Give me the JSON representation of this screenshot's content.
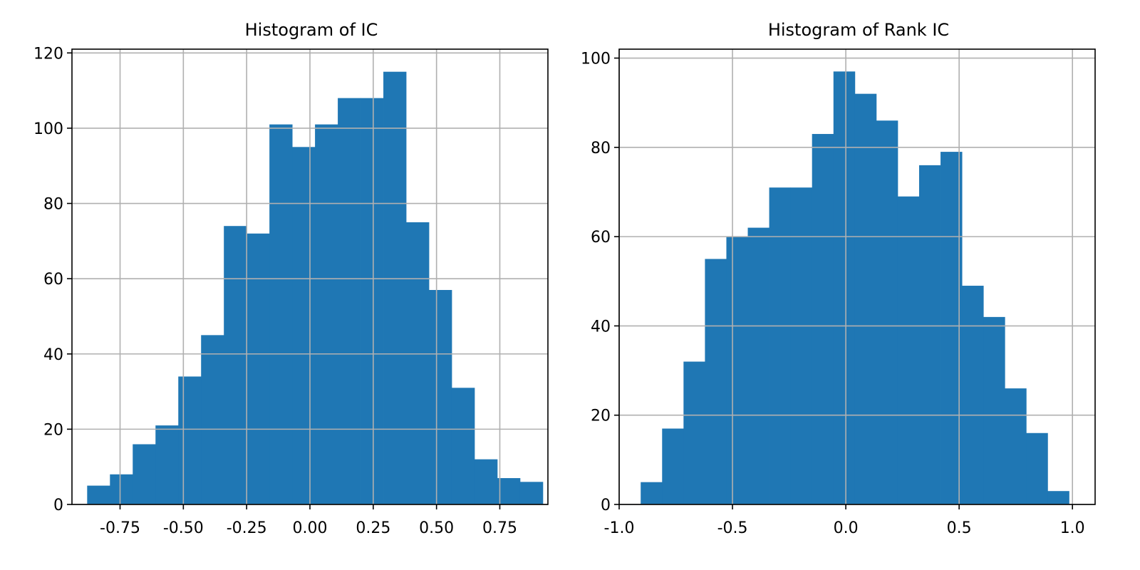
{
  "chart_data": [
    {
      "type": "bar",
      "title": "Histogram of IC",
      "xlabel": "",
      "ylabel": "",
      "color": "#1f77b4",
      "grid": true,
      "xlim": [
        -0.94,
        0.94
      ],
      "ylim": [
        0,
        121
      ],
      "xticks": [
        -0.75,
        -0.5,
        -0.25,
        0.0,
        0.25,
        0.5,
        0.75
      ],
      "xtick_labels": [
        "-0.75",
        "-0.50",
        "-0.25",
        "0.00",
        "0.25",
        "0.50",
        "0.75"
      ],
      "yticks": [
        0,
        20,
        40,
        60,
        80,
        100,
        120
      ],
      "ytick_labels": [
        "0",
        "20",
        "40",
        "60",
        "80",
        "100",
        "120"
      ],
      "bin_edges": [
        -0.88,
        -0.79,
        -0.7,
        -0.61,
        -0.52,
        -0.43,
        -0.34,
        -0.25,
        -0.16,
        -0.07,
        0.02,
        0.11,
        0.2,
        0.29,
        0.38,
        0.47,
        0.56,
        0.65,
        0.74,
        0.83,
        0.92
      ],
      "values": [
        5,
        8,
        16,
        21,
        34,
        45,
        74,
        72,
        101,
        95,
        101,
        108,
        108,
        115,
        75,
        57,
        31,
        12,
        7,
        6
      ]
    },
    {
      "type": "bar",
      "title": "Histogram of Rank IC",
      "xlabel": "",
      "ylabel": "",
      "color": "#1f77b4",
      "grid": true,
      "xlim": [
        -1.0,
        1.1
      ],
      "ylim": [
        0,
        102
      ],
      "xticks": [
        -1.0,
        -0.5,
        0.0,
        0.5,
        1.0
      ],
      "xtick_labels": [
        "-1.0",
        "-0.5",
        "0.0",
        "0.5",
        "1.0"
      ],
      "yticks": [
        0,
        20,
        40,
        60,
        80,
        100
      ],
      "ytick_labels": [
        "0",
        "20",
        "40",
        "60",
        "80",
        "100"
      ],
      "bin_edges": [
        -0.905,
        -0.8105,
        -0.716,
        -0.6215,
        -0.527,
        -0.4325,
        -0.338,
        -0.2435,
        -0.149,
        -0.0545,
        0.04,
        0.1345,
        0.229,
        0.3235,
        0.418,
        0.5125,
        0.607,
        0.7015,
        0.796,
        0.8905,
        0.985
      ],
      "values": [
        5,
        17,
        32,
        55,
        60,
        62,
        71,
        71,
        83,
        97,
        92,
        86,
        69,
        76,
        79,
        49,
        42,
        26,
        16,
        3
      ]
    }
  ]
}
